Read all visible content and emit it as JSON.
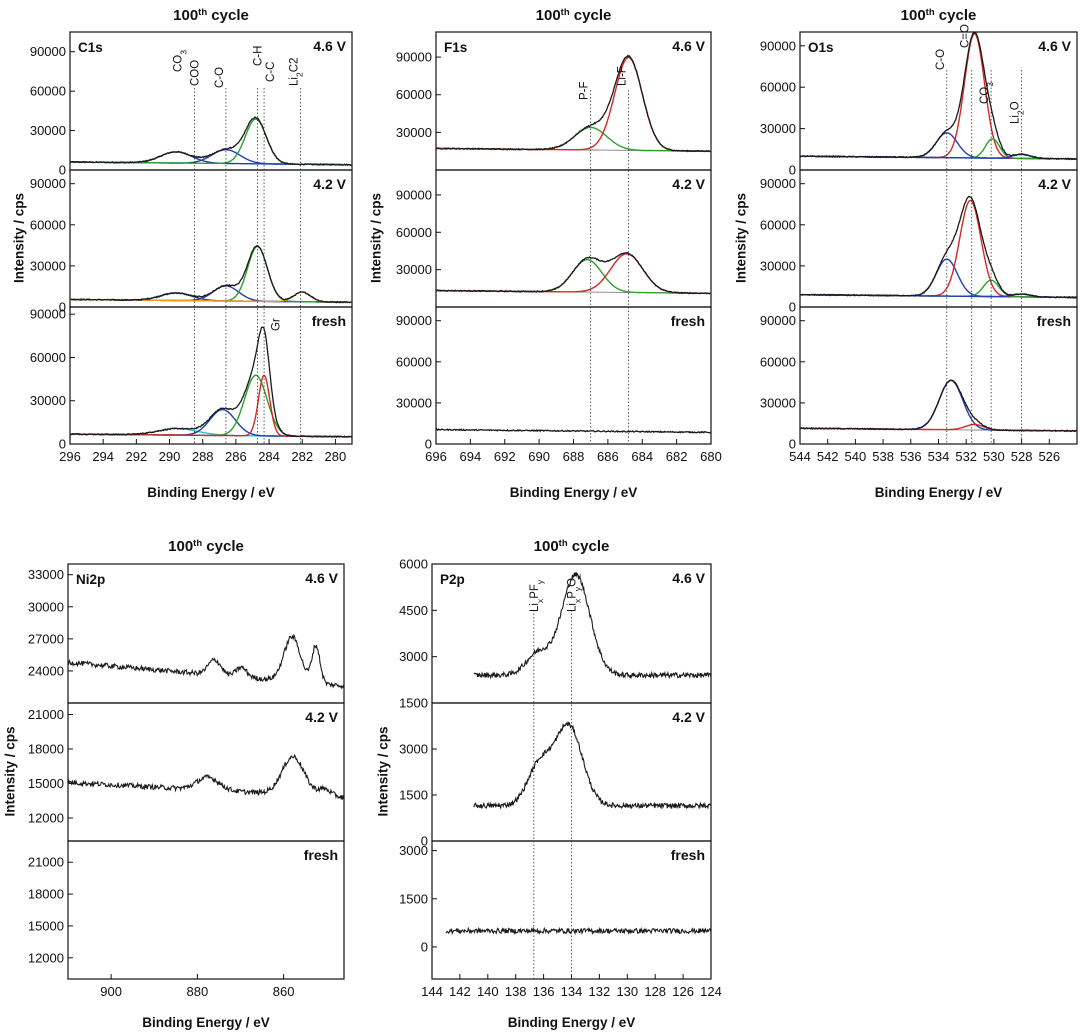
{
  "colors": {
    "measured": "#1a1a1a",
    "fit_red": "#d62728",
    "fit_green": "#2ca02c",
    "fit_blue": "#1f3fb4",
    "fit_cyan": "#25c4d8",
    "fit_orange": "#f29b16",
    "background": "#808080"
  },
  "chart_data": [
    {
      "type": "line",
      "element": "C1s",
      "title": "100th cycle",
      "xlabel": "Binding Energy / eV",
      "ylabel": "Intensity / cps",
      "xlim": [
        296,
        279
      ],
      "xticks": [
        "296",
        "294",
        "292",
        "290",
        "288",
        "286",
        "284",
        "282",
        "280"
      ],
      "panels": [
        {
          "state": "4.6 V",
          "ylim": [
            0,
            105000
          ],
          "yticks": [
            "0",
            "30000",
            "60000",
            "90000"
          ],
          "baseline": 4000,
          "peaks": [
            {
              "center": 289.6,
              "height": 8500,
              "fwhm": 2.2,
              "color": "fit_blue"
            },
            {
              "center": 286.6,
              "height": 10500,
              "fwhm": 2.0,
              "color": "fit_blue"
            },
            {
              "center": 284.8,
              "height": 34000,
              "fwhm": 1.5,
              "color": "fit_green"
            }
          ]
        },
        {
          "state": "4.2 V",
          "ylim": [
            0,
            100000
          ],
          "yticks": [
            "0",
            "30000",
            "60000",
            "90000"
          ],
          "baseline": 3500,
          "peaks": [
            {
              "center": 289.6,
              "height": 5500,
              "fwhm": 2.2,
              "color": "fit_blue"
            },
            {
              "center": 286.6,
              "height": 11000,
              "fwhm": 1.8,
              "color": "fit_blue"
            },
            {
              "center": 284.7,
              "height": 40000,
              "fwhm": 1.4,
              "color": "fit_green"
            },
            {
              "center": 282.0,
              "height": 7000,
              "fwhm": 1.2,
              "color": "fit_orange"
            }
          ]
        },
        {
          "state": "fresh",
          "ylim": [
            0,
            95000
          ],
          "yticks": [
            "0",
            "30000",
            "60000",
            "90000"
          ],
          "baseline": 5000,
          "peaks": [
            {
              "center": 289.5,
              "height": 4500,
              "fwhm": 2.8,
              "color": "fit_cyan"
            },
            {
              "center": 286.8,
              "height": 18000,
              "fwhm": 1.8,
              "color": "fit_blue"
            },
            {
              "center": 284.8,
              "height": 42000,
              "fwhm": 1.6,
              "color": "fit_green"
            },
            {
              "center": 284.3,
              "height": 42000,
              "fwhm": 0.8,
              "color": "fit_red"
            }
          ]
        }
      ],
      "markers": [
        {
          "x": 288.5,
          "label": "CO3",
          "sub": "3"
        },
        {
          "x": 288.5,
          "label": "COO"
        },
        {
          "x": 286.6,
          "label": "C-O"
        },
        {
          "x": 284.7,
          "label": "C-H"
        },
        {
          "x": 284.3,
          "label": "C-C"
        },
        {
          "x": 282.1,
          "label": "Li2C2",
          "sub": "2"
        }
      ],
      "annotations": [
        {
          "label": "Gr",
          "x": 283.6,
          "panel": 2
        }
      ]
    },
    {
      "type": "line",
      "element": "F1s",
      "title": "100th cycle",
      "xlabel": "Binding Energy / eV",
      "ylabel": "Intensity / cps",
      "xlim": [
        696,
        680
      ],
      "xticks": [
        "696",
        "694",
        "692",
        "690",
        "688",
        "686",
        "684",
        "682",
        "680"
      ],
      "panels": [
        {
          "state": "4.6 V",
          "ylim": [
            0,
            110000
          ],
          "yticks": [
            "30000",
            "60000",
            "90000"
          ],
          "baseline": 15000,
          "peaks": [
            {
              "center": 687.0,
              "height": 18000,
              "fwhm": 2.2,
              "color": "fit_green"
            },
            {
              "center": 684.8,
              "height": 74000,
              "fwhm": 1.9,
              "color": "fit_red"
            }
          ]
        },
        {
          "state": "4.2 V",
          "ylim": [
            0,
            110000
          ],
          "yticks": [
            "30000",
            "60000",
            "90000"
          ],
          "baseline": 11000,
          "peaks": [
            {
              "center": 687.2,
              "height": 26000,
              "fwhm": 2.0,
              "color": "fit_green"
            },
            {
              "center": 684.9,
              "height": 31000,
              "fwhm": 2.2,
              "color": "fit_red"
            }
          ]
        },
        {
          "state": "fresh",
          "ylim": [
            0,
            100000
          ],
          "yticks": [
            "0",
            "30000",
            "60000",
            "90000"
          ],
          "baseline": 8500,
          "peaks": []
        }
      ],
      "markers": [
        {
          "x": 687.0,
          "label": "P-F"
        },
        {
          "x": 684.8,
          "label": "Li-F"
        }
      ],
      "annotations": []
    },
    {
      "type": "line",
      "element": "O1s",
      "title": "100th cycle",
      "xlabel": "Binding Energy / eV",
      "ylabel": "Intensity / cps",
      "xlim": [
        544,
        524
      ],
      "xticks": [
        "544",
        "542",
        "540",
        "538",
        "536",
        "534",
        "532",
        "530",
        "528",
        "526"
      ],
      "panels": [
        {
          "state": "4.6 V",
          "ylim": [
            0,
            100000
          ],
          "yticks": [
            "0",
            "30000",
            "60000",
            "90000"
          ],
          "baseline": 8000,
          "peaks": [
            {
              "center": 533.4,
              "height": 18000,
              "fwhm": 1.8,
              "color": "fit_blue"
            },
            {
              "center": 531.4,
              "height": 90000,
              "fwhm": 1.7,
              "color": "fit_red"
            },
            {
              "center": 530.1,
              "height": 14000,
              "fwhm": 1.2,
              "color": "fit_green"
            },
            {
              "center": 528.0,
              "height": 3000,
              "fwhm": 1.5,
              "color": "fit_blue"
            }
          ]
        },
        {
          "state": "4.2 V",
          "ylim": [
            0,
            100000
          ],
          "yticks": [
            "0",
            "30000",
            "60000",
            "90000"
          ],
          "baseline": 7000,
          "peaks": [
            {
              "center": 533.4,
              "height": 27000,
              "fwhm": 1.8,
              "color": "fit_blue"
            },
            {
              "center": 531.7,
              "height": 70000,
              "fwhm": 1.8,
              "color": "fit_red"
            },
            {
              "center": 530.2,
              "height": 12000,
              "fwhm": 1.3,
              "color": "fit_green"
            },
            {
              "center": 528.0,
              "height": 2000,
              "fwhm": 1.5,
              "color": "fit_blue"
            }
          ]
        },
        {
          "state": "fresh",
          "ylim": [
            0,
            100000
          ],
          "yticks": [
            "0",
            "30000",
            "60000",
            "90000"
          ],
          "baseline": 9500,
          "peaks": [
            {
              "center": 533.1,
              "height": 36000,
              "fwhm": 2.0,
              "color": "fit_blue"
            },
            {
              "center": 531.4,
              "height": 4000,
              "fwhm": 1.6,
              "color": "fit_red"
            }
          ]
        }
      ],
      "markers": [
        {
          "x": 533.4,
          "label": "C-O"
        },
        {
          "x": 531.6,
          "label": "C=O"
        },
        {
          "x": 530.2,
          "label": "CO3",
          "sub": "3"
        },
        {
          "x": 528.0,
          "label": "Li2O",
          "sub": "2"
        }
      ],
      "annotations": []
    },
    {
      "type": "line",
      "element": "Ni2p",
      "title": "100th cycle",
      "xlabel": "Binding Energy / eV",
      "ylabel": "Intensity / cps",
      "xlim": [
        910,
        846
      ],
      "xticks": [
        "900",
        "880",
        "860"
      ],
      "panels": [
        {
          "state": "4.6 V",
          "ylim": [
            21000,
            34000
          ],
          "yticks": [
            "24000",
            "27000",
            "30000",
            "33000"
          ],
          "baseline": 24800,
          "slope": 2200,
          "peaks": [
            {
              "center": 876.0,
              "height": 1400,
              "fwhm": 3.5
            },
            {
              "center": 869.8,
              "height": 900,
              "fwhm": 3.0
            },
            {
              "center": 858.0,
              "height": 4200,
              "fwhm": 4.5
            },
            {
              "center": 852.5,
              "height": 3500,
              "fwhm": 2.2
            }
          ]
        },
        {
          "state": "4.2 V",
          "ylim": [
            10000,
            22000
          ],
          "yticks": [
            "12000",
            "15000",
            "18000",
            "21000"
          ],
          "baseline": 15100,
          "slope": 1300,
          "peaks": [
            {
              "center": 877.5,
              "height": 1100,
              "fwhm": 6.0
            },
            {
              "center": 857.8,
              "height": 3300,
              "fwhm": 6.0
            },
            {
              "center": 850.5,
              "height": 600,
              "fwhm": 3.5
            }
          ]
        },
        {
          "state": "fresh",
          "ylim": [
            10000,
            23000
          ],
          "yticks": [
            "12000",
            "15000",
            "18000",
            "21000"
          ],
          "peaks": [],
          "empty": true
        }
      ],
      "markers": [],
      "annotations": []
    },
    {
      "type": "line",
      "element": "P2p",
      "title": "100th cycle",
      "xlabel": "Binding Energy / eV",
      "ylabel": "Intensity / cps",
      "xlim": [
        144,
        124
      ],
      "xticks": [
        "144",
        "142",
        "140",
        "138",
        "136",
        "134",
        "132",
        "130",
        "128",
        "126",
        "124"
      ],
      "panels": [
        {
          "state": "4.6 V",
          "ylim": [
            1500,
            6000
          ],
          "yticks": [
            "1500",
            "3000",
            "4500",
            "6000"
          ],
          "baseline": 2400,
          "xstart": 141,
          "peaks": [
            {
              "center": 136.4,
              "height": 700,
              "fwhm": 2.0
            },
            {
              "center": 133.7,
              "height": 3250,
              "fwhm": 2.4
            }
          ]
        },
        {
          "state": "4.2 V",
          "ylim": [
            0,
            4500
          ],
          "yticks": [
            "0",
            "1500",
            "3000"
          ],
          "baseline": 1150,
          "xstart": 141,
          "peaks": [
            {
              "center": 136.3,
              "height": 1300,
              "fwhm": 2.0
            },
            {
              "center": 134.2,
              "height": 2600,
              "fwhm": 2.3
            }
          ]
        },
        {
          "state": "fresh",
          "ylim": [
            -1000,
            3300
          ],
          "yticks": [
            "0",
            "1500",
            "3000"
          ],
          "baseline": 500,
          "xstart": 143,
          "peaks": []
        }
      ],
      "markers": [
        {
          "x": 136.7,
          "label": "LixPFy",
          "sub": "xy"
        },
        {
          "x": 134.0,
          "label": "LixPyOz",
          "sub": "xyz"
        }
      ],
      "annotations": []
    }
  ]
}
